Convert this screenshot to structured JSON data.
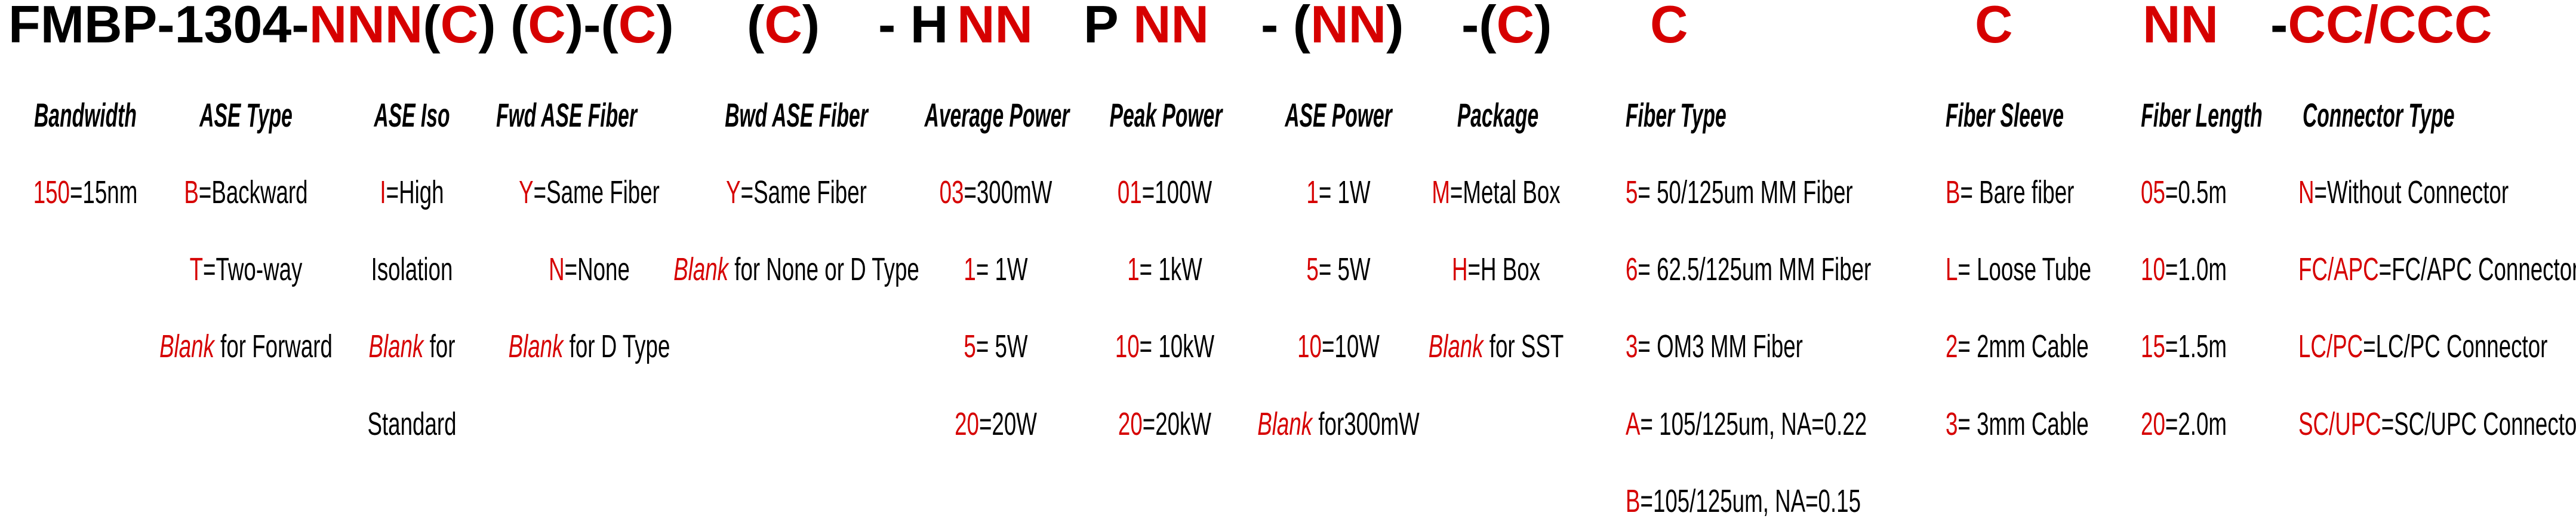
{
  "title_tokens": [
    {
      "parts": [
        {
          "t": "FMBP-1304-",
          "red": false
        },
        {
          "t": "NNN",
          "red": true
        },
        {
          "t": "(",
          "red": false
        },
        {
          "t": "C",
          "red": true
        },
        {
          "t": ") (",
          "red": false
        },
        {
          "t": "C",
          "red": true
        },
        {
          "t": ")-(",
          "red": false
        },
        {
          "t": "C",
          "red": true
        },
        {
          "t": ")",
          "red": false
        }
      ]
    },
    {
      "parts": [
        {
          "t": "(",
          "red": false
        },
        {
          "t": "C",
          "red": true
        },
        {
          "t": ")",
          "red": false
        }
      ]
    },
    {
      "parts": [
        {
          "t": "- H",
          "red": false
        }
      ]
    },
    {
      "parts": [
        {
          "t": "NN",
          "red": true
        }
      ]
    },
    {
      "parts": [
        {
          "t": "P",
          "red": false
        }
      ]
    },
    {
      "parts": [
        {
          "t": "NN",
          "red": true
        }
      ]
    },
    {
      "parts": [
        {
          "t": "- (",
          "red": false
        },
        {
          "t": "NN",
          "red": true
        },
        {
          "t": ")",
          "red": false
        }
      ]
    },
    {
      "parts": [
        {
          "t": "-(",
          "red": false
        },
        {
          "t": "C",
          "red": true
        },
        {
          "t": ")",
          "red": false
        }
      ]
    },
    {
      "parts": [
        {
          "t": "C",
          "red": true
        }
      ]
    },
    {
      "parts": [
        {
          "t": "C",
          "red": true
        }
      ]
    },
    {
      "parts": [
        {
          "t": "NN",
          "red": true
        }
      ]
    },
    {
      "parts": [
        {
          "t": "-",
          "red": false
        },
        {
          "t": "CC/CCC",
          "red": true
        }
      ]
    }
  ],
  "columns": [
    {
      "header": "Bandwidth",
      "items": [
        {
          "code": "150",
          "text": "=15nm"
        }
      ]
    },
    {
      "header": "ASE Type",
      "items": [
        {
          "code": "B",
          "text": "=Backward"
        },
        {
          "code": "T",
          "text": "=Two-way"
        },
        {
          "code": "Blank",
          "text": " for Forward",
          "blank": true
        }
      ]
    },
    {
      "header": "ASE Iso",
      "items": [
        {
          "code": "I",
          "text": "=High"
        },
        {
          "code": "",
          "text": "Isolation"
        },
        {
          "code": "Blank",
          "text": " for",
          "blank": true
        },
        {
          "code": "",
          "text": "Standard"
        }
      ]
    },
    {
      "header": "Fwd ASE Fiber",
      "items": [
        {
          "code": "Y",
          "text": "=Same Fiber"
        },
        {
          "code": "N",
          "text": "=None"
        },
        {
          "code": "Blank",
          "text": " for D Type",
          "blank": true
        }
      ]
    },
    {
      "header": "Bwd ASE Fiber",
      "items": [
        {
          "code": "Y",
          "text": "=Same Fiber"
        },
        {
          "code": "Blank",
          "text": " for None or D Type",
          "blank": true
        }
      ]
    },
    {
      "header": "Average Power",
      "items": [
        {
          "code": "03",
          "text": "=300mW"
        },
        {
          "code": "1",
          "text": "= 1W"
        },
        {
          "code": "5",
          "text": "= 5W"
        },
        {
          "code": "20",
          "text": "=20W"
        }
      ]
    },
    {
      "header": "Peak Power",
      "items": [
        {
          "code": "01",
          "text": "=100W"
        },
        {
          "code": "1",
          "text": "= 1kW"
        },
        {
          "code": "10",
          "text": "= 10kW"
        },
        {
          "code": "20",
          "text": "=20kW"
        }
      ]
    },
    {
      "header": "ASE Power",
      "items": [
        {
          "code": "1",
          "text": "= 1W"
        },
        {
          "code": "5",
          "text": "= 5W"
        },
        {
          "code": "10",
          "text": "=10W"
        },
        {
          "code": "Blank",
          "text": " for300mW",
          "blank": true
        }
      ]
    },
    {
      "header": "Package",
      "items": [
        {
          "code": "M",
          "text": "=Metal Box"
        },
        {
          "code": "H",
          "text": "=H Box"
        },
        {
          "code": "Blank",
          "text": " for SST",
          "blank": true
        }
      ]
    },
    {
      "header": "Fiber Type",
      "items": [
        {
          "code": "5",
          "text": "= 50/125um MM Fiber"
        },
        {
          "code": "6",
          "text": "= 62.5/125um MM Fiber"
        },
        {
          "code": "3",
          "text": "= OM3 MM Fiber"
        },
        {
          "code": "A",
          "text": "= 105/125um, NA=0.22"
        },
        {
          "code": "B",
          "text": "=105/125um, NA=0.15"
        }
      ]
    },
    {
      "header": "Fiber Sleeve",
      "items": [
        {
          "code": "B",
          "text": "= Bare fiber"
        },
        {
          "code": "L",
          "text": "= Loose Tube"
        },
        {
          "code": "2",
          "text": "= 2mm Cable"
        },
        {
          "code": "3",
          "text": "= 3mm Cable"
        }
      ]
    },
    {
      "header": "Fiber Length",
      "items": [
        {
          "code": "05",
          "text": "=0.5m"
        },
        {
          "code": "10",
          "text": "=1.0m"
        },
        {
          "code": "15",
          "text": "=1.5m"
        },
        {
          "code": "20",
          "text": "=2.0m"
        }
      ]
    },
    {
      "header": "Connector Type",
      "items": [
        {
          "code": "N",
          "text": "=Without Connector"
        },
        {
          "code": "FC/APC",
          "text": "=FC/APC Connector"
        },
        {
          "code": "LC/PC",
          "text": "=LC/PC Connector"
        },
        {
          "code": "SC/UPC",
          "text": "=SC/UPC Connector"
        }
      ]
    }
  ],
  "colors": {
    "accent": "#d60000",
    "text": "#000000"
  }
}
